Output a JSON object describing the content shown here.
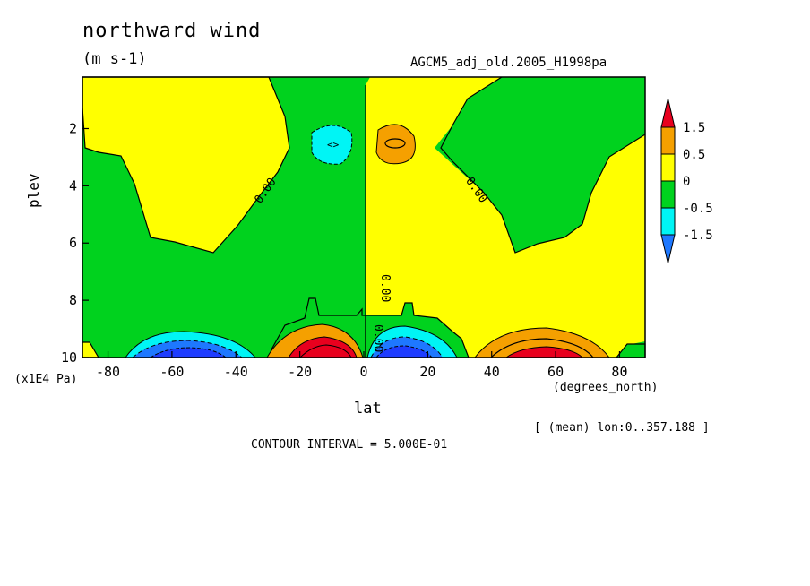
{
  "header": {
    "title": "northward wind",
    "units": "(m s-1)",
    "dataset": "AGCM5_adj_old.2005_H1998pa"
  },
  "axes": {
    "ylabel": "plev",
    "yunit": "(x1E4 Pa)",
    "xlabel": "lat",
    "xunit": "(degrees_north)"
  },
  "footer": {
    "mean_note": "[ (mean) lon:0..357.188 ]",
    "contour_interval": "CONTOUR INTERVAL = 5.000E-01"
  },
  "colors": {
    "red": "#e8001e",
    "orange": "#f5a000",
    "yellow": "#ffff00",
    "green": "#00d21e",
    "cyan": "#00f5f5",
    "blue": "#1e78ff",
    "darkblue": "#1e3cff"
  },
  "chart_data": {
    "type": "contour",
    "title": "northward wind",
    "subtitle": "(m s-1)",
    "xlabel": "lat",
    "ylabel": "plev",
    "x_ticks": [
      -80,
      -60,
      -40,
      -20,
      0,
      20,
      40,
      60,
      80
    ],
    "y_ticks": [
      2,
      4,
      6,
      8,
      10
    ],
    "xlim": [
      -88,
      88
    ],
    "ylim": [
      10,
      0.2
    ],
    "contour_interval": 0.5,
    "zero_contour_labels": [
      "0.00",
      "0.00",
      "0.00",
      "0.00"
    ],
    "colorbar": {
      "levels": [
        "1.5",
        "0.5",
        "0",
        "-0.5",
        "-1.5"
      ],
      "colors": [
        "#e8001e",
        "#f5a000",
        "#ffff00",
        "#00d21e",
        "#00f5f5",
        "#1e78ff"
      ]
    },
    "features": [
      {
        "region": "upper troposphere",
        "lat": -10,
        "plev": 2.5,
        "sign": "negative",
        "value": "< -0.5"
      },
      {
        "region": "upper troposphere",
        "lat": 10,
        "plev": 2.5,
        "sign": "positive",
        "value": "> 0.5"
      },
      {
        "region": "surface",
        "lat": -55,
        "plev": 9.9,
        "sign": "negative",
        "value": "< -1.5"
      },
      {
        "region": "surface",
        "lat": -12,
        "plev": 9.9,
        "sign": "positive",
        "value": "> 1.5"
      },
      {
        "region": "surface",
        "lat": 12,
        "plev": 9.9,
        "sign": "negative",
        "value": "< -1.5"
      },
      {
        "region": "surface",
        "lat": 58,
        "plev": 9.9,
        "sign": "positive",
        "value": "> 1.5"
      }
    ]
  }
}
